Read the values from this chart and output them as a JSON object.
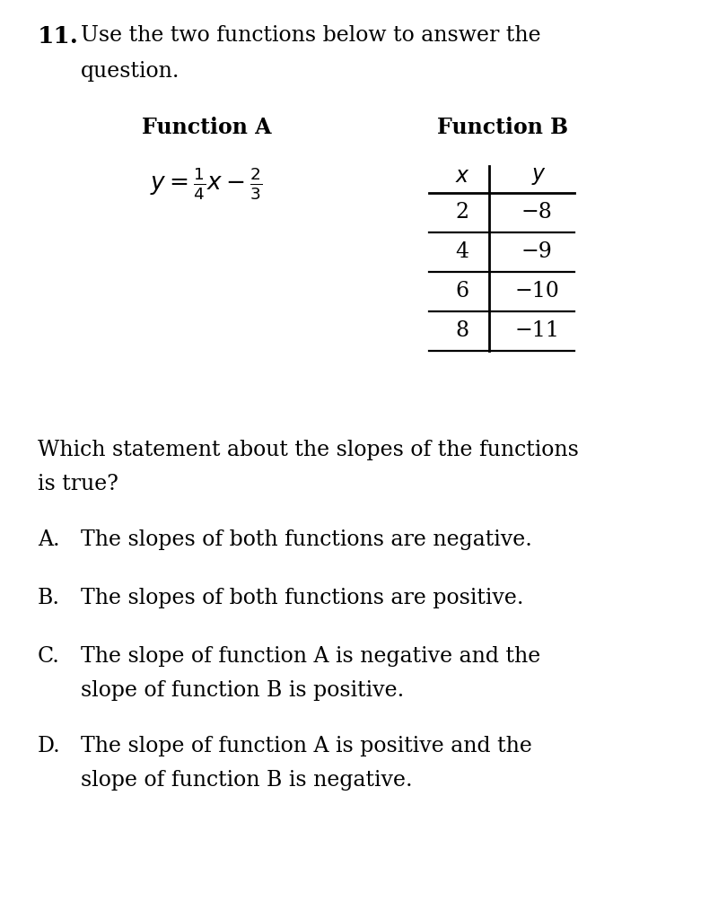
{
  "bg_color": "#ffffff",
  "question_number": "11.",
  "intro_text_line1": "Use the two functions below to answer the",
  "intro_text_line2": "question.",
  "func_a_label": "Function A",
  "func_b_label": "Function B",
  "func_a_eq": "$y = \\frac{1}{4}x - \\frac{2}{3}$",
  "table_headers": [
    "x",
    "y"
  ],
  "table_data": [
    [
      "2",
      "−8"
    ],
    [
      "4",
      "−9"
    ],
    [
      "6",
      "−10"
    ],
    [
      "8",
      "−11"
    ]
  ],
  "question_line1": "Which statement about the slopes of the functions",
  "question_line2": "is true?",
  "choice_A_label": "A.",
  "choice_A_line1": "The slopes of both functions are negative.",
  "choice_B_label": "B.",
  "choice_B_line1": "The slopes of both functions are positive.",
  "choice_C_label": "C.",
  "choice_C_line1": "The slope of function A is negative and the",
  "choice_C_line2": "slope of function B is positive.",
  "choice_D_label": "D.",
  "choice_D_line1": "The slope of function A is positive and the",
  "choice_D_line2": "slope of function B is negative.",
  "font_size": 17,
  "font_color": "#000000"
}
